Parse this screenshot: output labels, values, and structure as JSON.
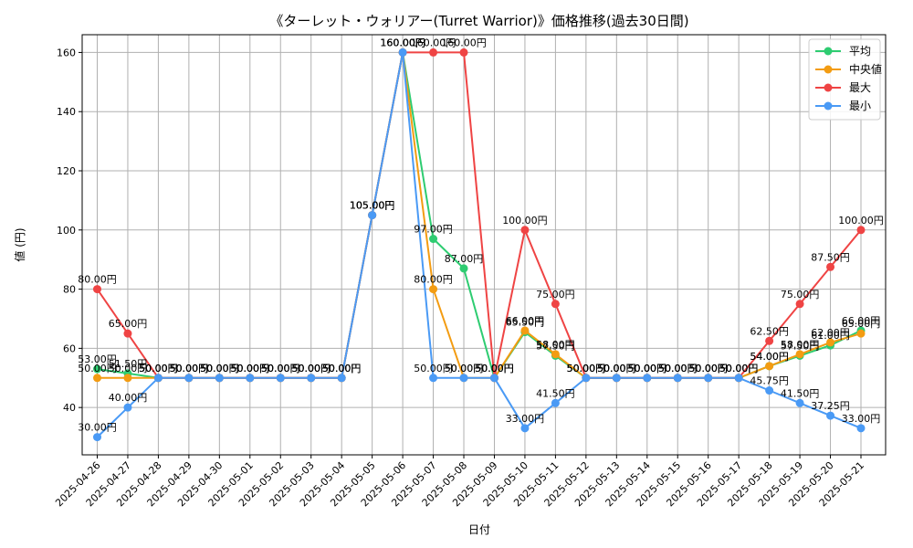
{
  "chart_data": {
    "type": "line",
    "title": "《ターレット・ウォリアー(Turret Warrior)》価格推移(過去30日間)",
    "xlabel": "日付",
    "ylabel": "値 (円)",
    "ylim": [
      24,
      166
    ],
    "yticks": [
      40,
      60,
      80,
      100,
      120,
      140,
      160
    ],
    "grid": true,
    "legend_position": "top-right",
    "unit_suffix": "円",
    "categories": [
      "2025-04-26",
      "2025-04-27",
      "2025-04-28",
      "2025-04-29",
      "2025-04-30",
      "2025-05-01",
      "2025-05-02",
      "2025-05-03",
      "2025-05-04",
      "2025-05-05",
      "2025-05-06",
      "2025-05-07",
      "2025-05-08",
      "2025-05-09",
      "2025-05-10",
      "2025-05-11",
      "2025-05-12",
      "2025-05-13",
      "2025-05-14",
      "2025-05-15",
      "2025-05-16",
      "2025-05-17",
      "2025-05-18",
      "2025-05-19",
      "2025-05-20",
      "2025-05-21"
    ],
    "series": [
      {
        "name": "平均",
        "color": "#2ecc71",
        "values": [
          53.0,
          51.5,
          50,
          50,
          50,
          50,
          50,
          50,
          50,
          105,
          160,
          97,
          87,
          50,
          65.5,
          57.5,
          50,
          50,
          50,
          50,
          50,
          50,
          54.0,
          57.5,
          61.0,
          66.0
        ]
      },
      {
        "name": "中央値",
        "color": "#f39c12",
        "values": [
          50,
          50,
          50,
          50,
          50,
          50,
          50,
          50,
          50,
          105,
          160,
          80,
          50,
          50,
          66,
          58,
          50,
          50,
          50,
          50,
          50,
          50,
          54,
          58,
          62,
          65
        ]
      },
      {
        "name": "最大",
        "color": "#ef4444",
        "values": [
          80,
          65,
          50,
          50,
          50,
          50,
          50,
          50,
          50,
          105,
          160,
          160,
          160,
          50,
          100,
          75,
          50,
          50,
          50,
          50,
          50,
          50,
          62.5,
          75,
          87.5,
          100
        ]
      },
      {
        "name": "最小",
        "color": "#4a9af5",
        "values": [
          30,
          40,
          50,
          50,
          50,
          50,
          50,
          50,
          50,
          105,
          160,
          50,
          50,
          50,
          33,
          41.5,
          50,
          50,
          50,
          50,
          50,
          50,
          45.75,
          41.5,
          37.25,
          33
        ]
      }
    ]
  }
}
